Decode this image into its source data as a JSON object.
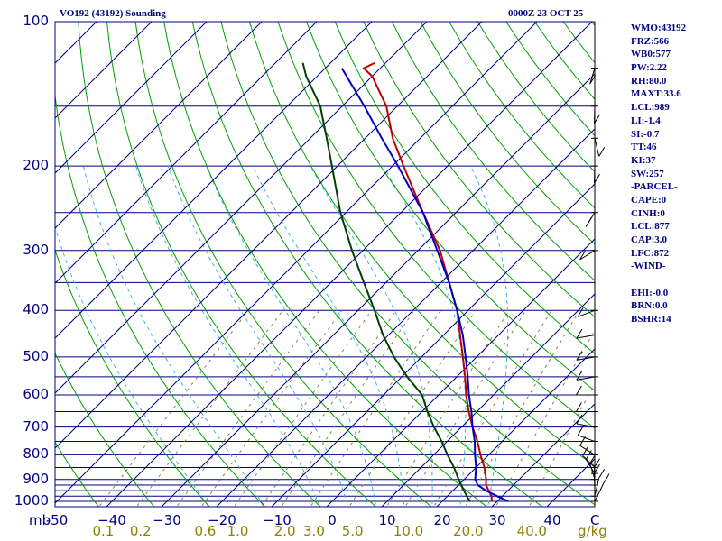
{
  "header": {
    "title_left": "VO192 (43192) Sounding",
    "title_right": "0000Z 23 OCT 25"
  },
  "indices": [
    "WMO:43192",
    "FRZ:566",
    "WB0:577",
    "PW:2.22",
    "RH:80.0",
    "MAXT:33.6",
    "LCL:989",
    "LI:-1.4",
    "SI:-0.7",
    "TT:46",
    "KI:37",
    "SW:257",
    "-PARCEL-",
    "CAPE:0",
    "CINH:0",
    "LCL:877",
    "CAP:3.0",
    "LFC:872",
    "-WIND-",
    "",
    "EHI:-0.0",
    "BRN:0.0",
    "BSHR:14"
  ],
  "colors": {
    "frame": "#000080",
    "isobar": "#000080",
    "dry_adiabat": "#00a000",
    "moist_adiabat": "#40b0e0",
    "mixing_ratio": "#8b7d50",
    "temperature": "#c00000",
    "dewpoint": "#004000",
    "parcel": "#0000c0",
    "wind": "#000000",
    "mix_label": "#8b8000"
  },
  "chart_data": {
    "type": "line",
    "diagram": "Skew-T log-P",
    "xlabel": "C",
    "ylabel": "mb",
    "mix_unit": "g/kg",
    "xlim": [
      -50,
      50
    ],
    "ylim": [
      1000,
      100
    ],
    "pressure_ticks": [
      {
        "p": 100,
        "label": "100"
      },
      {
        "p": 200,
        "label": "200"
      },
      {
        "p": 300,
        "label": "300"
      },
      {
        "p": 400,
        "label": "400"
      },
      {
        "p": 500,
        "label": "500"
      },
      {
        "p": 600,
        "label": "600"
      },
      {
        "p": 700,
        "label": "700"
      },
      {
        "p": 800,
        "label": "800"
      },
      {
        "p": 900,
        "label": "900"
      },
      {
        "p": 1000,
        "label": "1000"
      }
    ],
    "isobars": [
      100,
      150,
      200,
      250,
      300,
      350,
      400,
      450,
      500,
      550,
      600,
      650,
      700,
      750,
      800,
      850,
      900,
      925,
      950,
      975,
      1000
    ],
    "temperature_ticks": [
      {
        "t": -50,
        "label": "-50"
      },
      {
        "t": -40,
        "label": "−40"
      },
      {
        "t": -30,
        "label": "−30"
      },
      {
        "t": -20,
        "label": "−20"
      },
      {
        "t": -10,
        "label": "−10"
      },
      {
        "t": 0,
        "label": "0"
      },
      {
        "t": 10,
        "label": "10"
      },
      {
        "t": 20,
        "label": "20"
      },
      {
        "t": 30,
        "label": "30"
      },
      {
        "t": 40,
        "label": "40"
      }
    ],
    "mixing_ratio_ticks": [
      {
        "w": 0.1,
        "label": "0.1"
      },
      {
        "w": 0.2,
        "label": "0.2"
      },
      {
        "w": 0.6,
        "label": "0.6"
      },
      {
        "w": 1.0,
        "label": "1.0"
      },
      {
        "w": 2.0,
        "label": "2.0"
      },
      {
        "w": 3.0,
        "label": "3.0"
      },
      {
        "w": 5.0,
        "label": "5.0"
      },
      {
        "w": 10.0,
        "label": "10.0"
      },
      {
        "w": 20.0,
        "label": "20.0"
      },
      {
        "w": 40.0,
        "label": "40.0"
      }
    ],
    "dry_adiabats_theta_k": [
      230,
      240,
      250,
      260,
      270,
      280,
      290,
      300,
      310,
      320,
      330,
      340,
      350,
      360,
      370,
      380,
      390,
      400,
      410,
      420,
      430,
      440,
      450
    ],
    "moist_adiabats_base_c": [
      -20,
      -10,
      0,
      5,
      10,
      15,
      20,
      25,
      30
    ],
    "mixing_ratio_lines_gkg": [
      0.1,
      0.2,
      0.4,
      0.6,
      1.0,
      1.5,
      2.0,
      3.0,
      5.0,
      8.0,
      10.0,
      14.0,
      20.0,
      28.0,
      40.0
    ],
    "series": [
      {
        "name": "Temperature",
        "points": [
          {
            "p": 1000,
            "t": 29.0
          },
          {
            "p": 975,
            "t": 28.0
          },
          {
            "p": 950,
            "t": 26.5
          },
          {
            "p": 925,
            "t": 25.0
          },
          {
            "p": 900,
            "t": 24.0
          },
          {
            "p": 850,
            "t": 21.5
          },
          {
            "p": 800,
            "t": 18.5
          },
          {
            "p": 750,
            "t": 15.5
          },
          {
            "p": 700,
            "t": 12.0
          },
          {
            "p": 650,
            "t": 8.5
          },
          {
            "p": 600,
            "t": 5.0
          },
          {
            "p": 550,
            "t": 1.5
          },
          {
            "p": 500,
            "t": -2.5
          },
          {
            "p": 450,
            "t": -7.0
          },
          {
            "p": 400,
            "t": -12.0
          },
          {
            "p": 350,
            "t": -18.5
          },
          {
            "p": 300,
            "t": -26.0
          },
          {
            "p": 250,
            "t": -36.0
          },
          {
            "p": 200,
            "t": -48.0
          },
          {
            "p": 175,
            "t": -55.0
          },
          {
            "p": 150,
            "t": -62.0
          },
          {
            "p": 130,
            "t": -70.0
          },
          {
            "p": 125,
            "t": -73.0
          },
          {
            "p": 122,
            "t": -72.0
          }
        ]
      },
      {
        "name": "Dewpoint",
        "points": [
          {
            "p": 1000,
            "t": 25.0
          },
          {
            "p": 975,
            "t": 23.5
          },
          {
            "p": 950,
            "t": 22.0
          },
          {
            "p": 925,
            "t": 20.5
          },
          {
            "p": 900,
            "t": 19.0
          },
          {
            "p": 850,
            "t": 16.0
          },
          {
            "p": 800,
            "t": 12.5
          },
          {
            "p": 750,
            "t": 9.0
          },
          {
            "p": 700,
            "t": 5.0
          },
          {
            "p": 650,
            "t": 1.0
          },
          {
            "p": 600,
            "t": -3.0
          },
          {
            "p": 550,
            "t": -9.0
          },
          {
            "p": 500,
            "t": -15.0
          },
          {
            "p": 450,
            "t": -21.0
          },
          {
            "p": 400,
            "t": -27.0
          },
          {
            "p": 350,
            "t": -34.0
          },
          {
            "p": 300,
            "t": -42.0
          },
          {
            "p": 250,
            "t": -51.0
          },
          {
            "p": 200,
            "t": -61.0
          },
          {
            "p": 175,
            "t": -67.0
          },
          {
            "p": 150,
            "t": -74.0
          },
          {
            "p": 130,
            "t": -82.0
          },
          {
            "p": 122,
            "t": -85.0
          }
        ]
      },
      {
        "name": "Parcel",
        "points": [
          {
            "p": 1000,
            "t": 32.0
          },
          {
            "p": 975,
            "t": 29.0
          },
          {
            "p": 950,
            "t": 26.0
          },
          {
            "p": 925,
            "t": 23.5
          },
          {
            "p": 900,
            "t": 22.0
          },
          {
            "p": 850,
            "t": 20.0
          },
          {
            "p": 800,
            "t": 17.5
          },
          {
            "p": 750,
            "t": 15.0
          },
          {
            "p": 700,
            "t": 12.0
          },
          {
            "p": 650,
            "t": 9.0
          },
          {
            "p": 600,
            "t": 5.5
          },
          {
            "p": 550,
            "t": 2.0
          },
          {
            "p": 500,
            "t": -2.0
          },
          {
            "p": 450,
            "t": -6.5
          },
          {
            "p": 400,
            "t": -12.0
          },
          {
            "p": 350,
            "t": -18.5
          },
          {
            "p": 300,
            "t": -26.5
          },
          {
            "p": 250,
            "t": -36.0
          },
          {
            "p": 200,
            "t": -49.0
          },
          {
            "p": 175,
            "t": -57.0
          },
          {
            "p": 150,
            "t": -66.0
          },
          {
            "p": 125,
            "t": -77.0
          }
        ]
      }
    ],
    "wind_barbs": [
      {
        "p": 1000,
        "dir": 180,
        "speed": 10
      },
      {
        "p": 975,
        "dir": 190,
        "speed": 10
      },
      {
        "p": 950,
        "dir": 200,
        "speed": 10
      },
      {
        "p": 925,
        "dir": 200,
        "speed": 10
      },
      {
        "p": 900,
        "dir": 210,
        "speed": 10
      },
      {
        "p": 875,
        "dir": 220,
        "speed": 10
      },
      {
        "p": 850,
        "dir": 230,
        "speed": 10
      },
      {
        "p": 800,
        "dir": 240,
        "speed": 10
      },
      {
        "p": 750,
        "dir": 250,
        "speed": 10
      },
      {
        "p": 700,
        "dir": 260,
        "speed": 10
      },
      {
        "p": 650,
        "dir": 270,
        "speed": 10
      },
      {
        "p": 600,
        "dir": 270,
        "speed": 10
      },
      {
        "p": 550,
        "dir": 280,
        "speed": 10
      },
      {
        "p": 500,
        "dir": 280,
        "speed": 10
      },
      {
        "p": 450,
        "dir": 280,
        "speed": 10
      },
      {
        "p": 400,
        "dir": 290,
        "speed": 10
      },
      {
        "p": 300,
        "dir": 300,
        "speed": 5
      },
      {
        "p": 250,
        "dir": 320,
        "speed": 10
      },
      {
        "p": 200,
        "dir": 340,
        "speed": 10
      },
      {
        "p": 175,
        "dir": 350,
        "speed": 5
      },
      {
        "p": 150,
        "dir": 340,
        "speed": 5
      },
      {
        "p": 125,
        "dir": 330,
        "speed": 5
      }
    ]
  }
}
